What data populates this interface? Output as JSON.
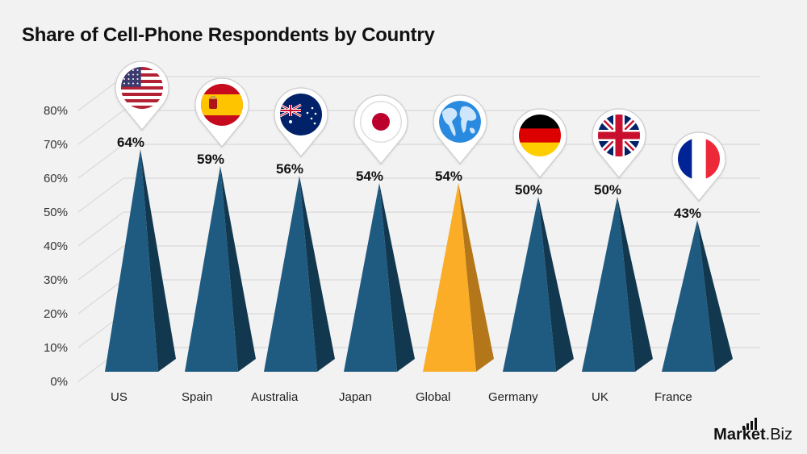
{
  "title": "Share of Cell-Phone Respondents by Country",
  "logo": {
    "brand": "Market",
    "suffix": ".Biz"
  },
  "colors": {
    "background": "#f2f2f2",
    "bar_front": "#1f5a80",
    "bar_side": "#12384f",
    "highlight_front": "#fbad27",
    "highlight_side": "#b3771a",
    "grid": "#d9d9d9",
    "pin_border": "#cccccc"
  },
  "chart_data": {
    "type": "bar",
    "title": "Share of Cell-Phone Respondents by Country",
    "xlabel": "",
    "ylabel": "",
    "categories": [
      "US",
      "Spain",
      "Australia",
      "Japan",
      "Global",
      "Germany",
      "UK",
      "France"
    ],
    "values": [
      64,
      59,
      56,
      54,
      54,
      50,
      50,
      43
    ],
    "value_labels": [
      "64%",
      "59%",
      "56%",
      "54%",
      "54%",
      "50%",
      "50%",
      "43%"
    ],
    "icons": [
      "flag-us-icon",
      "flag-spain-icon",
      "flag-australia-icon",
      "flag-japan-icon",
      "globe-icon",
      "flag-germany-icon",
      "flag-uk-icon",
      "flag-france-icon"
    ],
    "highlight": "Global",
    "ylim": [
      0,
      80
    ],
    "yticks": [
      "0%",
      "10%",
      "20%",
      "30%",
      "40%",
      "50%",
      "60%",
      "70%",
      "80%"
    ],
    "grid": true,
    "legend": null,
    "style": "3d-pyramid"
  }
}
